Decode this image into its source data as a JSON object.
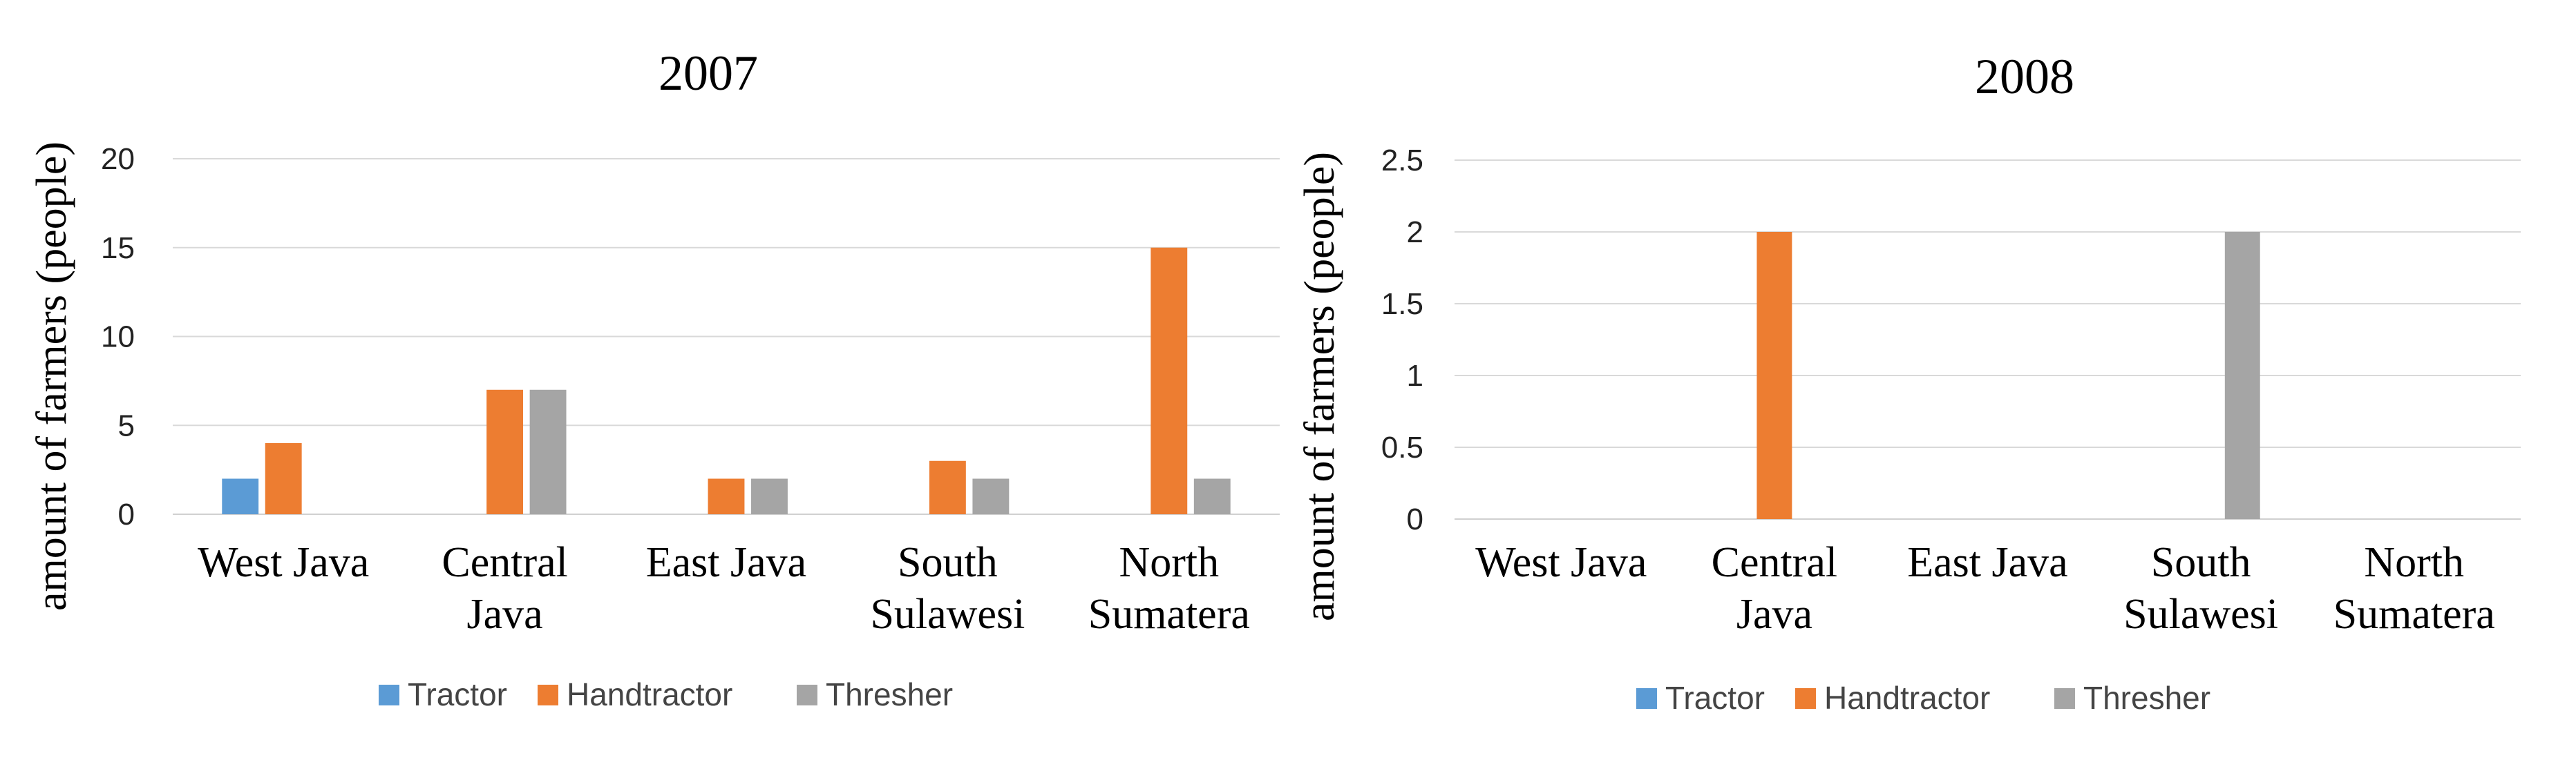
{
  "chart_data": [
    {
      "type": "bar",
      "title": "2007",
      "ylabel": "amount of farmers (people)",
      "xlabel": "",
      "categories": [
        "West Java",
        "Central Java",
        "East Java",
        "South Sulawesi",
        "North Sumatera"
      ],
      "x_tick_lines": [
        [
          "West Java"
        ],
        [
          "Central",
          "Java"
        ],
        [
          "East Java"
        ],
        [
          "South",
          "Sulawesi"
        ],
        [
          "North",
          "Sumatera"
        ]
      ],
      "ylim": [
        0,
        20
      ],
      "yticks": [
        0,
        5,
        10,
        15,
        20
      ],
      "ytick_labels": [
        "0",
        "5",
        "10",
        "15",
        "20"
      ],
      "grid": true,
      "legend_position": "bottom",
      "series": [
        {
          "name": "Tractor",
          "color": "#5B9BD5",
          "values": [
            2,
            0,
            0,
            0,
            0
          ]
        },
        {
          "name": "Handtractor",
          "color": "#ED7D31",
          "values": [
            4,
            7,
            2,
            3,
            15
          ]
        },
        {
          "name": "Thresher",
          "color": "#A5A5A5",
          "values": [
            0,
            7,
            2,
            2,
            2
          ]
        }
      ]
    },
    {
      "type": "bar",
      "title": "2008",
      "ylabel": "amount of farmers (people)",
      "xlabel": "",
      "categories": [
        "West Java",
        "Central Java",
        "East Java",
        "South Sulawesi",
        "North Sumatera"
      ],
      "x_tick_lines": [
        [
          "West Java"
        ],
        [
          "Central",
          "Java"
        ],
        [
          "East Java"
        ],
        [
          "South",
          "Sulawesi"
        ],
        [
          "North",
          "Sumatera"
        ]
      ],
      "ylim": [
        0,
        2.5
      ],
      "yticks": [
        0,
        0.5,
        1,
        1.5,
        2,
        2.5
      ],
      "ytick_labels": [
        "0",
        "0.5",
        "1",
        "1.5",
        "2",
        "2.5"
      ],
      "grid": true,
      "legend_position": "bottom",
      "series": [
        {
          "name": "Tractor",
          "color": "#5B9BD5",
          "values": [
            0,
            0,
            0,
            0,
            0
          ]
        },
        {
          "name": "Handtractor",
          "color": "#ED7D31",
          "values": [
            0,
            2,
            0,
            0,
            0
          ]
        },
        {
          "name": "Thresher",
          "color": "#A5A5A5",
          "values": [
            0,
            0,
            0,
            2,
            0
          ]
        }
      ]
    }
  ]
}
